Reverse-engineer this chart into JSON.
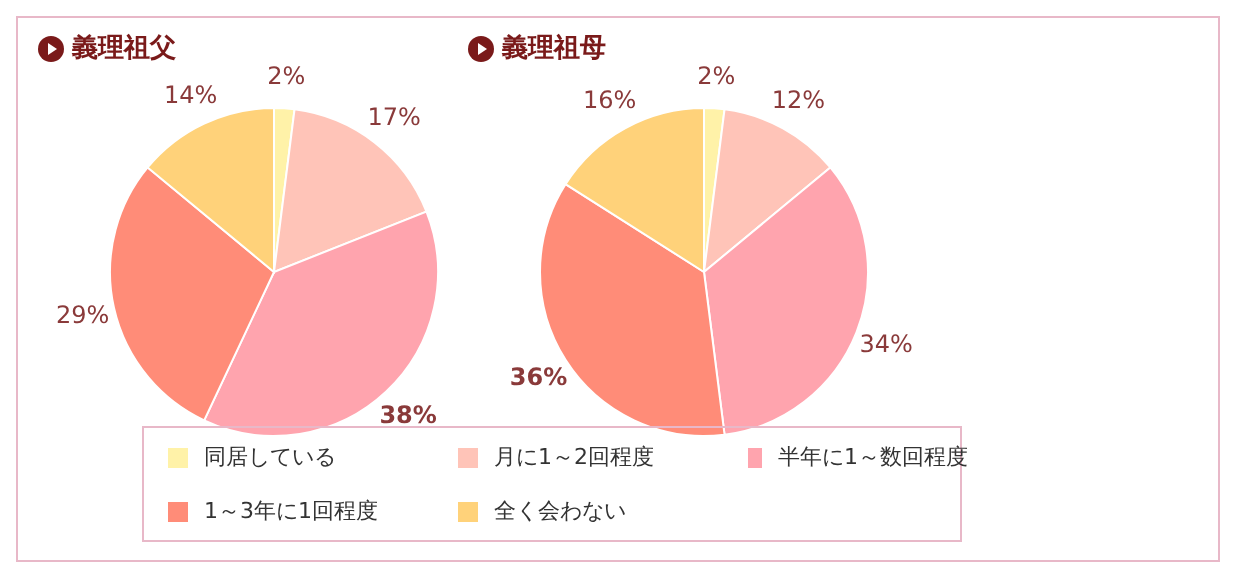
{
  "chart_data": [
    {
      "type": "pie",
      "title": "義理祖父",
      "categories": [
        "同居している",
        "月に1～2回程度",
        "半年に1～数回程度",
        "1～3年に1回程度",
        "全く会わない"
      ],
      "values": [
        2,
        17,
        38,
        29,
        14
      ],
      "colors": [
        "#fff2a8",
        "#ffc4b8",
        "#ffa4ae",
        "#ff8c78",
        "#ffd27a"
      ],
      "value_labels": [
        "2%",
        "17%",
        "38%",
        "29%",
        "14%"
      ],
      "legend": "bottom"
    },
    {
      "type": "pie",
      "title": "義理祖母",
      "categories": [
        null,
        null,
        null,
        null,
        null
      ],
      "values": [
        2,
        12,
        34,
        36,
        16
      ],
      "colors": [
        "#fff2a8",
        "#ffc4b8",
        "#ffa4ae",
        "#ff8c78",
        "#ffd27a"
      ],
      "value_labels": [
        "2%",
        "12%",
        "34%",
        "36%",
        "16%"
      ]
    }
  ]
}
